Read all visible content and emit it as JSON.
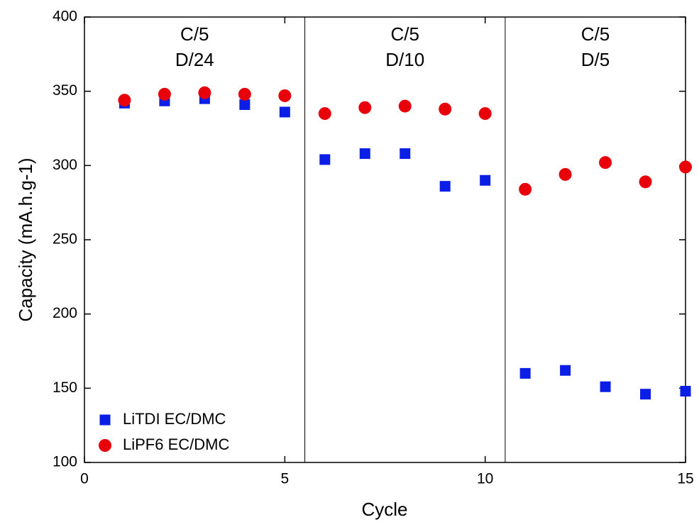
{
  "chart_data": {
    "type": "scatter",
    "x_label": "Cycle",
    "y_label": "Capacity (mA.h.g-1)",
    "x": [
      1,
      2,
      3,
      4,
      5,
      6,
      7,
      8,
      9,
      10,
      11,
      12,
      13,
      14,
      15
    ],
    "series": [
      {
        "name": "LiTDI EC/DMC",
        "color": "#0a1ee6",
        "marker": "square",
        "values": [
          342,
          343.5,
          345,
          341,
          336,
          304,
          308,
          308,
          286,
          290,
          160,
          162,
          151,
          146,
          148
        ]
      },
      {
        "name": "LiPF6 EC/DMC",
        "color": "#e8000b",
        "marker": "circle",
        "values": [
          344,
          348,
          349,
          348,
          347,
          335,
          339,
          340,
          338,
          335,
          284,
          294,
          302,
          289,
          299
        ]
      }
    ],
    "xlim": [
      0,
      15
    ],
    "xticks": [
      0,
      5,
      10,
      15
    ],
    "ylim": [
      100,
      400
    ],
    "yticks": [
      100,
      150,
      200,
      250,
      300,
      350,
      400
    ],
    "dividers": [
      5.5,
      10.5
    ],
    "annotations": [
      [
        "C/5",
        "D/24"
      ],
      [
        "C/5",
        "D/10"
      ],
      [
        "C/5",
        "D/5"
      ]
    ],
    "legend": "lower left"
  }
}
